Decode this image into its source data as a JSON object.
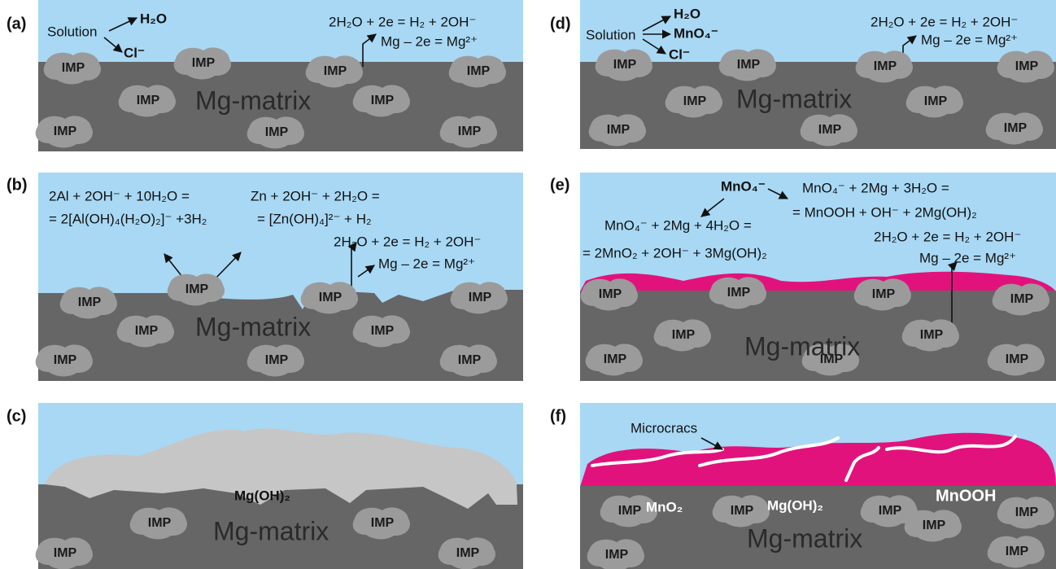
{
  "panels": [
    {
      "tag": "(a)",
      "solution": "Solution",
      "h2o": "H₂O",
      "cl": "Cl⁻",
      "eq1": "2H₂O + 2e = H₂ + 2OH⁻",
      "eq2": "Mg – 2e = Mg²⁺",
      "matrix": "Mg-matrix",
      "imp": [
        "IMP",
        "IMP",
        "IMP",
        "IMP",
        "IMP",
        "IMP",
        "IMP",
        "IMP",
        "IMP"
      ]
    },
    {
      "tag": "(b)",
      "eq1": "2Al + 2OH⁻ + 10H₂O =",
      "eq2": "= 2[Al(OH)₄(H₂O)₂]⁻ +3H₂",
      "eq3": "Zn + 2OH⁻ + 2H₂O =",
      "eq4": "= [Zn(OH)₄]²⁻ + H₂",
      "eq5": "2H₂O + 2e = H₂ + 2OH⁻",
      "eq6": "Mg – 2e = Mg²⁺",
      "matrix": "Mg-matrix",
      "imp": [
        "IMP",
        "IMP",
        "IMP",
        "IMP",
        "IMP",
        "IMP",
        "IMP",
        "IMP",
        "IMP"
      ]
    },
    {
      "tag": "(c)",
      "product": "Mg(OH)₂",
      "matrix": "Mg-matrix",
      "imp": [
        "IMP",
        "IMP",
        "IMP",
        "IMP"
      ]
    },
    {
      "tag": "(d)",
      "solution": "Solution",
      "h2o": "H₂O",
      "mno4": "MnO₄⁻",
      "cl": "Cl⁻",
      "eq1": "2H₂O + 2e = H₂ + 2OH⁻",
      "eq2": "Mg – 2e = Mg²⁺",
      "matrix": "Mg-matrix",
      "imp": [
        "IMP",
        "IMP",
        "IMP",
        "IMP",
        "IMP",
        "IMP",
        "IMP",
        "IMP",
        "IMP"
      ]
    },
    {
      "tag": "(e)",
      "mno4": "MnO₄⁻",
      "eq1": "MnO₄⁻ + 2Mg + 3H₂O =",
      "eq2": "= MnOOH + OH⁻ + 2Mg(OH)₂",
      "eq3": "MnO₄⁻ + 2Mg + 4H₂O =",
      "eq4": "= 2MnO₂ + 2OH⁻ + 3Mg(OH)₂",
      "eq5": "2H₂O + 2e = H₂ + 2OH⁻",
      "eq6": "Mg – 2e = Mg²⁺",
      "matrix": "Mg-matrix",
      "imp": [
        "IMP",
        "IMP",
        "IMP",
        "IMP",
        "IMP",
        "IMP",
        "IMP",
        "IMP",
        "IMP"
      ]
    },
    {
      "tag": "(f)",
      "cracks": "Microcracs",
      "mno2": "MnO₂",
      "mgoh": "Mg(OH)₂",
      "mnooh": "MnOOH",
      "matrix": "Mg-matrix",
      "imp": [
        "IMP",
        "IMP",
        "IMP",
        "IMP",
        "IMP",
        "IMP",
        "IMP"
      ]
    }
  ]
}
